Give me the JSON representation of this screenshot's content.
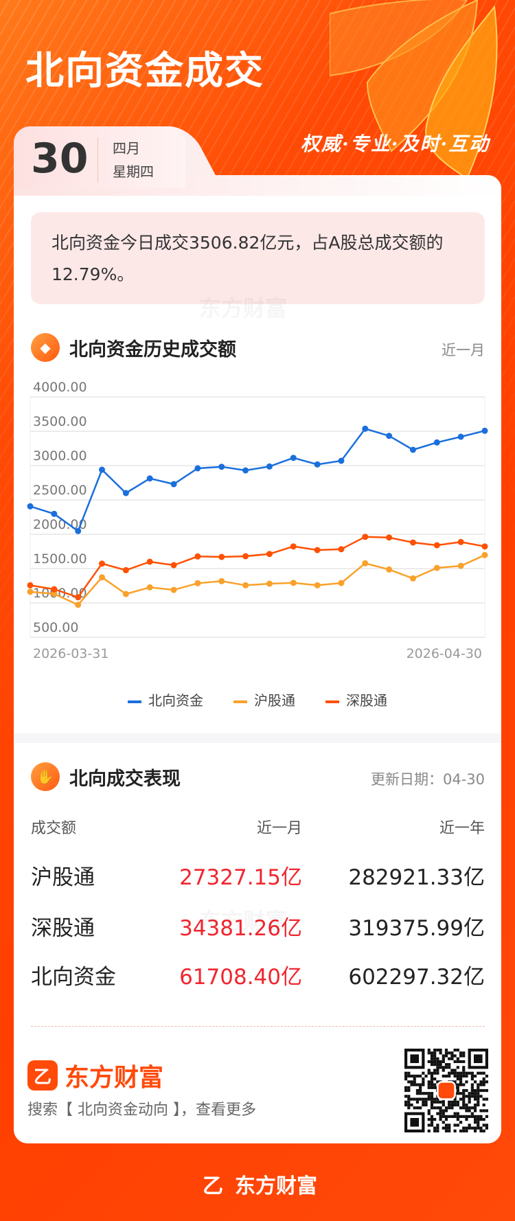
{
  "header": {
    "title": "北向资金成交",
    "slogan": "权威·专业·及时·互动",
    "day": "30",
    "month": "四月",
    "weekday": "星期四"
  },
  "summary": {
    "text": "北向资金今日成交3506.82亿元，占A股总成交额的12.79%。"
  },
  "history": {
    "title": "北向资金历史成交额",
    "range": "近一月",
    "icon": "coin-icon"
  },
  "chart_data": {
    "type": "line",
    "ylim": [
      500,
      4000
    ],
    "yticks": [
      "4000.00",
      "3500.00",
      "3000.00",
      "2500.00",
      "2000.00",
      "1500.00",
      "1000.00",
      "500.00"
    ],
    "xlabels": [
      "2026-03-31",
      "2026-04-30"
    ],
    "grid": true,
    "legend_placement": "bottom",
    "series": [
      {
        "name": "北向资金",
        "color": "#1a6fdc",
        "values": [
          2407,
          2297,
          2047,
          2940,
          2600,
          2813,
          2730,
          2960,
          2983,
          2930,
          2987,
          3113,
          3017,
          3070,
          3537,
          3433,
          3230,
          3337,
          3420,
          3507
        ]
      },
      {
        "name": "沪股通",
        "color": "#f9a12a",
        "values": [
          1163,
          1133,
          973,
          1373,
          1130,
          1227,
          1190,
          1287,
          1317,
          1257,
          1280,
          1293,
          1257,
          1290,
          1577,
          1487,
          1357,
          1510,
          1540,
          1697
        ]
      },
      {
        "name": "深股通",
        "color": "#ff5000",
        "values": [
          1257,
          1200,
          1083,
          1573,
          1477,
          1600,
          1550,
          1677,
          1670,
          1680,
          1713,
          1823,
          1770,
          1783,
          1963,
          1953,
          1880,
          1840,
          1887,
          1823
        ]
      }
    ]
  },
  "performance": {
    "title": "北向成交表现",
    "update": "更新日期：04-30",
    "icon": "handshake-icon",
    "headers": [
      "成交额",
      "近一月",
      "近一年"
    ],
    "rows": [
      [
        "沪股通",
        "27327.15亿",
        "282921.33亿"
      ],
      [
        "深股通",
        "34381.26亿",
        "319375.99亿"
      ],
      [
        "北向资金",
        "61708.40亿",
        "602297.32亿"
      ]
    ]
  },
  "brand": {
    "name": "东方财富",
    "search": "搜索【 北向资金动向 】，查看更多"
  },
  "footer": {
    "brand": "东方财富"
  },
  "colors": {
    "accent": "#ff4a0a",
    "red": "#f0262f"
  }
}
